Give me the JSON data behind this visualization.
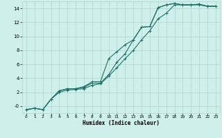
{
  "bg_color": "#cff0ea",
  "grid_color": "#aad6ce",
  "line_color": "#1a6e64",
  "xlabel": "Humidex (Indice chaleur)",
  "xlim": [
    -0.5,
    23.5
  ],
  "ylim": [
    -1.0,
    15.0
  ],
  "xticks": [
    0,
    1,
    2,
    3,
    4,
    5,
    6,
    7,
    8,
    9,
    10,
    11,
    12,
    13,
    14,
    15,
    16,
    17,
    18,
    19,
    20,
    21,
    22,
    23
  ],
  "yticks": [
    0,
    2,
    4,
    6,
    8,
    10,
    12,
    14
  ],
  "line1_x": [
    0,
    1,
    2,
    3,
    4,
    5,
    6,
    7,
    8,
    9,
    10,
    11,
    12,
    13,
    14,
    15,
    16,
    17,
    18,
    19,
    20,
    21,
    22,
    23
  ],
  "line1_y": [
    -0.5,
    -0.3,
    -0.5,
    1.0,
    2.2,
    2.5,
    2.5,
    2.7,
    3.3,
    3.3,
    4.5,
    6.3,
    7.5,
    9.5,
    11.3,
    11.4,
    14.1,
    14.5,
    14.7,
    14.5,
    14.5,
    14.6,
    14.3,
    14.3
  ],
  "line2_x": [
    0,
    1,
    2,
    3,
    4,
    5,
    6,
    7,
    8,
    9,
    10,
    11,
    12,
    13,
    14,
    15,
    16,
    17,
    18,
    19,
    20,
    21,
    22,
    23
  ],
  "line2_y": [
    -0.5,
    -0.3,
    -0.5,
    1.0,
    2.2,
    2.5,
    2.5,
    2.8,
    3.5,
    3.5,
    6.8,
    7.8,
    8.8,
    9.5,
    11.3,
    11.4,
    14.1,
    14.5,
    14.7,
    14.5,
    14.5,
    14.6,
    14.3,
    14.3
  ],
  "line3_x": [
    0,
    1,
    2,
    3,
    4,
    5,
    6,
    7,
    8,
    9,
    10,
    11,
    12,
    13,
    14,
    15,
    16,
    17,
    18,
    19,
    20,
    21,
    22,
    23
  ],
  "line3_y": [
    -0.5,
    -0.3,
    -0.5,
    1.0,
    2.0,
    2.3,
    2.4,
    2.5,
    3.0,
    3.2,
    4.3,
    5.5,
    6.8,
    8.0,
    9.5,
    10.8,
    12.5,
    13.3,
    14.5,
    14.5,
    14.5,
    14.5,
    14.3,
    14.3
  ],
  "marker": "+",
  "marker_size": 3.0,
  "linewidth": 0.8
}
